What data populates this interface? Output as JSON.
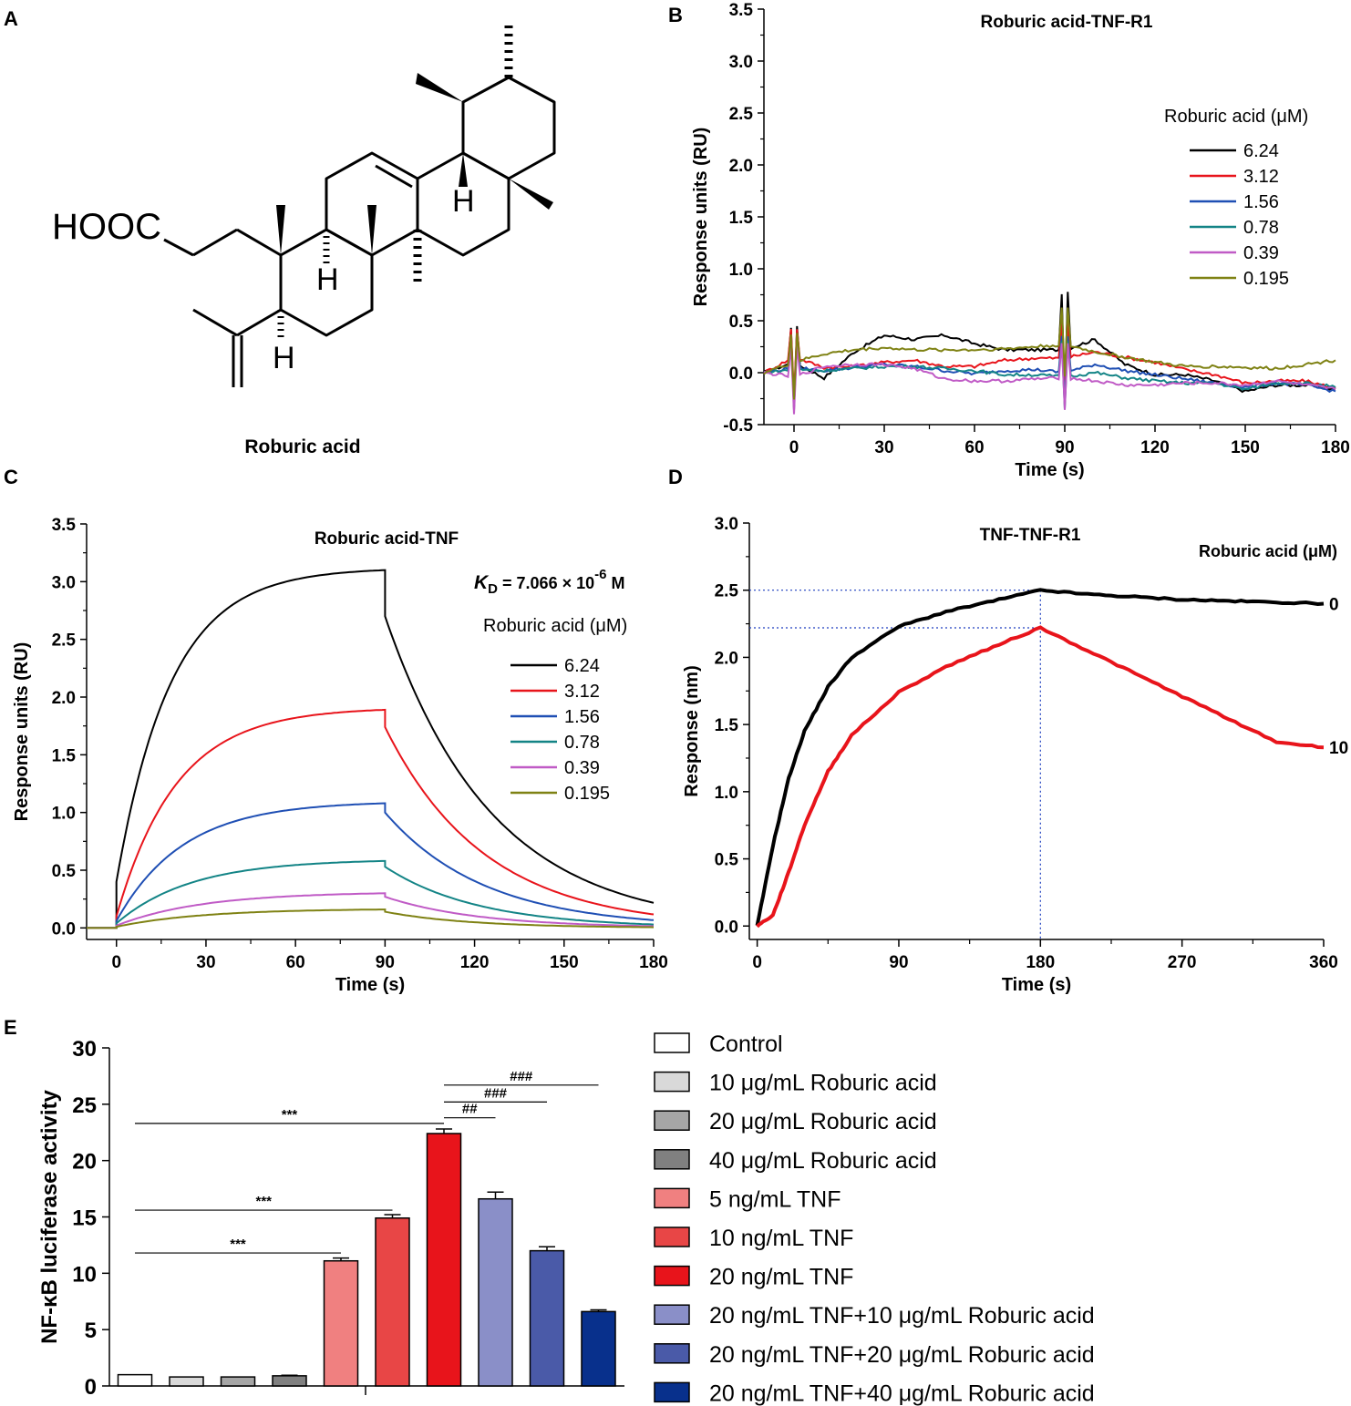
{
  "colors": {
    "c624": "#000000",
    "c312": "#e8141b",
    "c156": "#1f4fb4",
    "c078": "#138486",
    "c039": "#c05bc6",
    "c0195": "#7f8214",
    "black": "#000000",
    "red": "#e8141b",
    "guide": "#1f3fbf"
  },
  "panels": {
    "a": {
      "letter": "A",
      "structure": {
        "hooc": "HOOC",
        "h": "H",
        "caption": "Roburic acid"
      }
    },
    "b": {
      "letter": "B"
    },
    "c": {
      "letter": "C"
    },
    "d": {
      "letter": "D"
    },
    "e": {
      "letter": "E"
    }
  },
  "chart_data": [
    {
      "id": "B",
      "type": "line",
      "title": "Roburic acid-TNF-R1",
      "xlabel": "Time (s)",
      "ylabel": "Response units (RU)",
      "xlim": [
        -10,
        180
      ],
      "ylim": [
        -0.5,
        3.5
      ],
      "xticks": [
        "0",
        "30",
        "60",
        "90",
        "120",
        "150",
        "180"
      ],
      "yticks": [
        "-0.5",
        "0.0",
        "0.5",
        "1.0",
        "1.5",
        "2.0",
        "2.5",
        "3.0",
        "3.5"
      ],
      "legend_title": "Roburic acid (μM)",
      "legend_position": "top-right",
      "x": [
        -10,
        0,
        10,
        20,
        30,
        40,
        50,
        60,
        70,
        80,
        90,
        100,
        110,
        120,
        130,
        140,
        150,
        160,
        170,
        180
      ],
      "series": [
        {
          "name": "6.24",
          "color_key": "c624",
          "values": [
            0.0,
            0.1,
            -0.05,
            0.2,
            0.36,
            0.32,
            0.36,
            0.28,
            0.22,
            0.22,
            0.22,
            0.32,
            0.08,
            -0.02,
            -0.02,
            -0.08,
            -0.18,
            -0.12,
            -0.12,
            -0.16
          ]
        },
        {
          "name": "3.12",
          "color_key": "c312",
          "values": [
            0.0,
            0.15,
            0.05,
            0.06,
            0.1,
            0.12,
            0.06,
            0.06,
            0.12,
            0.14,
            0.14,
            0.2,
            0.15,
            0.1,
            0.03,
            -0.02,
            -0.1,
            -0.08,
            -0.08,
            -0.15
          ]
        },
        {
          "name": "1.56",
          "color_key": "c156",
          "values": [
            0.0,
            0.05,
            0.02,
            0.05,
            0.08,
            0.06,
            0.02,
            -0.01,
            0.02,
            0.03,
            0.0,
            0.08,
            0.02,
            -0.02,
            -0.06,
            -0.1,
            -0.14,
            -0.1,
            -0.12,
            -0.18
          ]
        },
        {
          "name": "0.78",
          "color_key": "c078",
          "values": [
            0.0,
            0.03,
            0.02,
            0.04,
            0.06,
            0.06,
            0.04,
            0.02,
            -0.02,
            -0.02,
            -0.04,
            0.0,
            -0.05,
            -0.08,
            -0.1,
            -0.1,
            -0.16,
            -0.1,
            -0.1,
            -0.14
          ]
        },
        {
          "name": "0.39",
          "color_key": "c039",
          "values": [
            0.0,
            -0.04,
            0.06,
            0.08,
            0.08,
            0.04,
            -0.06,
            -0.08,
            -0.08,
            -0.06,
            -0.05,
            -0.08,
            -0.12,
            -0.12,
            -0.1,
            -0.1,
            -0.12,
            -0.08,
            -0.12,
            -0.16
          ]
        },
        {
          "name": "0.195",
          "color_key": "c0195",
          "values": [
            0.0,
            0.1,
            0.18,
            0.22,
            0.24,
            0.22,
            0.22,
            0.22,
            0.23,
            0.25,
            0.27,
            0.2,
            0.15,
            0.1,
            0.06,
            0.06,
            0.05,
            0.04,
            0.08,
            0.12
          ]
        }
      ]
    },
    {
      "id": "C",
      "type": "line",
      "title": "Roburic acid-TNF",
      "kd_label": "K",
      "kd_sub": "D",
      "kd_text": " = 7.066 × 10",
      "kd_exp": "-6",
      "kd_unit": " M",
      "xlabel": "Time (s)",
      "ylabel": "Response units (RU)",
      "xlim": [
        -10,
        180
      ],
      "ylim": [
        -0.1,
        3.5
      ],
      "xticks": [
        "0",
        "30",
        "60",
        "90",
        "120",
        "150",
        "180"
      ],
      "yticks": [
        "0.0",
        "0.5",
        "1.0",
        "1.5",
        "2.0",
        "2.5",
        "3.0",
        "3.5"
      ],
      "legend_title": "Roburic acid (μM)",
      "legend_position": "right",
      "association_end_s": 90,
      "series": [
        {
          "name": "6.24",
          "color_key": "c624",
          "plateau": 3.1,
          "k_on": 0.055,
          "drop": 0.4,
          "k_off": 0.028,
          "start": 0.4
        },
        {
          "name": "3.12",
          "color_key": "c312",
          "plateau": 1.89,
          "k_on": 0.05,
          "drop": 0.15,
          "k_off": 0.03,
          "start": 0.1
        },
        {
          "name": "1.56",
          "color_key": "c156",
          "plateau": 1.08,
          "k_on": 0.045,
          "drop": 0.08,
          "k_off": 0.03,
          "start": 0.06
        },
        {
          "name": "0.78",
          "color_key": "c078",
          "plateau": 0.58,
          "k_on": 0.04,
          "drop": 0.05,
          "k_off": 0.032,
          "start": 0.04
        },
        {
          "name": "0.39",
          "color_key": "c039",
          "plateau": 0.3,
          "k_on": 0.035,
          "drop": 0.03,
          "k_off": 0.032,
          "start": 0.02
        },
        {
          "name": "0.195",
          "color_key": "c0195",
          "plateau": 0.16,
          "k_on": 0.035,
          "drop": 0.02,
          "k_off": 0.035,
          "start": 0.01
        }
      ]
    },
    {
      "id": "D",
      "type": "line",
      "title": "TNF-TNF-R1",
      "xlabel": "Time (s)",
      "ylabel": "Response (nm)",
      "xlim": [
        -5,
        360
      ],
      "ylim": [
        -0.1,
        3.0
      ],
      "xticks": [
        "0",
        "90",
        "180",
        "270",
        "360"
      ],
      "yticks": [
        "0.0",
        "0.5",
        "1.0",
        "1.5",
        "2.0",
        "2.5",
        "3.0"
      ],
      "legend_title": "Roburic acid (μM)",
      "legend_position": "top-right",
      "x": [
        0,
        10,
        20,
        30,
        45,
        60,
        90,
        120,
        150,
        180,
        210,
        240,
        270,
        300,
        330,
        360
      ],
      "series": [
        {
          "name": "0",
          "color_key": "black",
          "values": [
            0.0,
            0.6,
            1.1,
            1.45,
            1.78,
            2.0,
            2.23,
            2.34,
            2.42,
            2.5,
            2.47,
            2.45,
            2.43,
            2.42,
            2.41,
            2.4
          ]
        },
        {
          "name": "10",
          "color_key": "red",
          "values": [
            0.0,
            0.08,
            0.4,
            0.75,
            1.15,
            1.42,
            1.74,
            1.93,
            2.08,
            2.22,
            2.05,
            1.88,
            1.71,
            1.54,
            1.37,
            1.33
          ]
        }
      ],
      "guide_values": [
        2.5,
        2.22
      ],
      "guide_x": 180
    },
    {
      "id": "E",
      "type": "bar",
      "xlabel": "",
      "ylabel": "NF-κB luciferase activity",
      "ylim": [
        0,
        30
      ],
      "yticks": [
        "0",
        "5",
        "10",
        "15",
        "20",
        "25",
        "30"
      ],
      "categories": [
        "Control",
        "10 μg/mL Roburic acid",
        "20 μg/mL Roburic acid",
        "40 μg/mL Roburic acid",
        "5 ng/mL TNF",
        "10 ng/mL TNF",
        "20 ng/mL TNF",
        "20 ng/mL TNF+10 μg/mL Roburic acid",
        "20 ng/mL TNF+20 μg/mL Roburic acid",
        "20 ng/mL TNF+40 μg/mL Roburic acid"
      ],
      "values": [
        1.0,
        0.8,
        0.8,
        0.9,
        11.1,
        14.9,
        22.4,
        16.6,
        12.0,
        6.6
      ],
      "errors": [
        0.0,
        0.0,
        0.0,
        0.05,
        0.25,
        0.3,
        0.4,
        0.6,
        0.35,
        0.15
      ],
      "bar_colors": [
        "#ffffff",
        "#d9d9d9",
        "#a6a6a6",
        "#808080",
        "#f08080",
        "#e84646",
        "#e8141b",
        "#8a8fc8",
        "#4a5aa8",
        "#08308c"
      ],
      "legend_position": "right",
      "significance": [
        {
          "from": 0,
          "to": 4,
          "y": 11.8,
          "label": "***"
        },
        {
          "from": 0,
          "to": 5,
          "y": 15.6,
          "label": "***"
        },
        {
          "from": 0,
          "to": 6,
          "y": 23.3,
          "label": "***"
        },
        {
          "from": 6,
          "to": 7,
          "y": 23.8,
          "label": "##"
        },
        {
          "from": 6,
          "to": 8,
          "y": 25.2,
          "label": "###"
        },
        {
          "from": 6,
          "to": 9,
          "y": 26.7,
          "label": "###"
        }
      ]
    }
  ]
}
